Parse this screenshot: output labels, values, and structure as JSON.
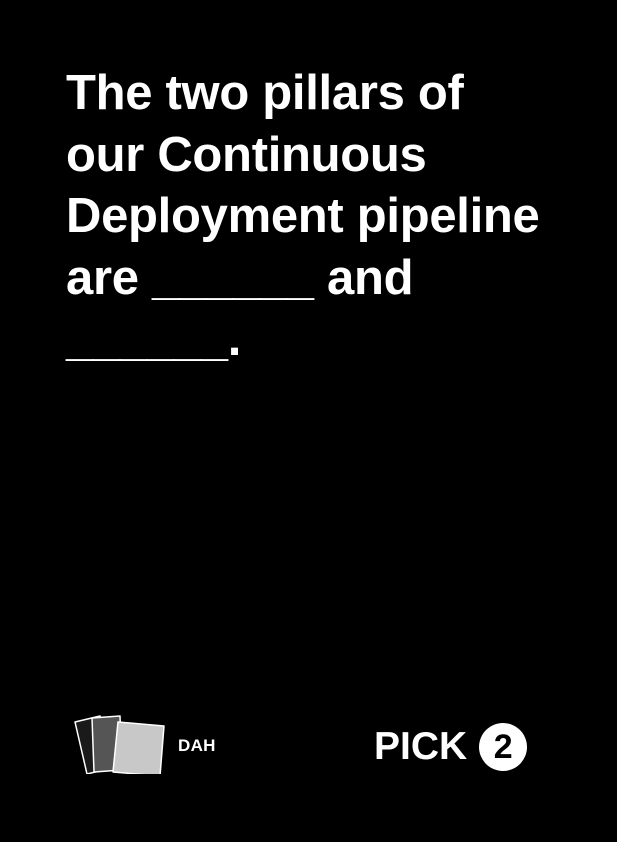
{
  "card": {
    "background": "#000000",
    "text_color": "#ffffff",
    "prompt_lines": [
      "The two pillars of",
      "our Continuous",
      "Deployment pipeline",
      "are ______ and",
      "______."
    ]
  },
  "footer": {
    "logo_icon": "stacked-cards-icon",
    "brand_label": "DAH",
    "pick_label": "PICK",
    "pick_count": "2"
  }
}
